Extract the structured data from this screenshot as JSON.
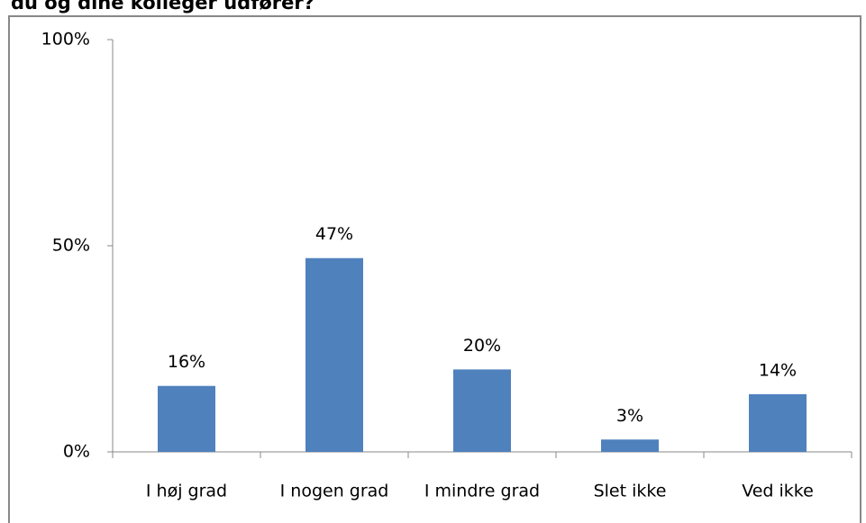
{
  "chart_data": {
    "type": "bar",
    "title": "du og dine kolleger udfører?",
    "categories": [
      "I høj grad",
      "I nogen grad",
      "I mindre grad",
      "Slet ikke",
      "Ved ikke"
    ],
    "values": [
      16,
      47,
      20,
      3,
      14
    ],
    "value_labels": [
      "16%",
      "47%",
      "20%",
      "3%",
      "14%"
    ],
    "color": "#4f81bd",
    "ylim": [
      0,
      100
    ],
    "yticks": [
      {
        "value": 0,
        "label": "0%"
      },
      {
        "value": 50,
        "label": "50%"
      },
      {
        "value": 100,
        "label": "100%"
      }
    ],
    "grid": false
  }
}
